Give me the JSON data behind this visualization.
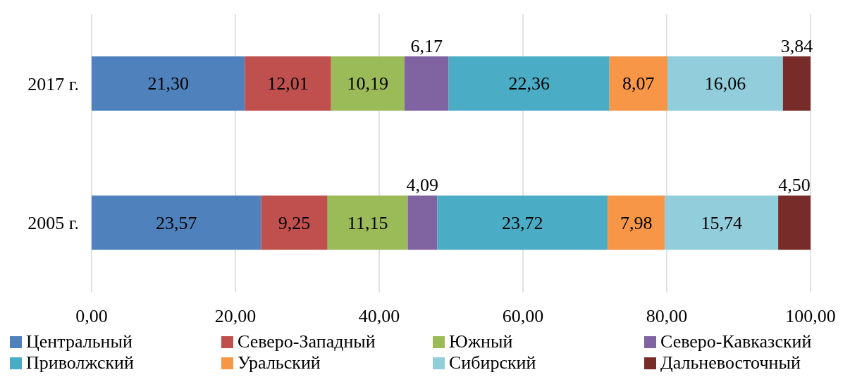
{
  "chart_data": {
    "type": "bar",
    "orientation": "horizontal",
    "stacked": true,
    "categories": [
      "2017 г.",
      "2005 г."
    ],
    "series": [
      {
        "name": "Центральный",
        "color": "#4f81bd",
        "values": [
          21.3,
          23.57
        ],
        "value_labels": [
          "21,30",
          "23,57"
        ]
      },
      {
        "name": "Северо-Западный",
        "color": "#c0504d",
        "values": [
          12.01,
          9.25
        ],
        "value_labels": [
          "12,01",
          "9,25"
        ]
      },
      {
        "name": "Южный",
        "color": "#9bbb59",
        "values": [
          10.19,
          11.15
        ],
        "value_labels": [
          "10,19",
          "11,15"
        ]
      },
      {
        "name": "Северо-Кавказский",
        "color": "#8064a2",
        "values": [
          6.17,
          4.09
        ],
        "value_labels": [
          "6,17",
          "4,09"
        ]
      },
      {
        "name": "Приволжский",
        "color": "#4bacc6",
        "values": [
          22.36,
          23.72
        ],
        "value_labels": [
          "22,36",
          "23,72"
        ]
      },
      {
        "name": "Уральский",
        "color": "#f79646",
        "values": [
          8.07,
          7.98
        ],
        "value_labels": [
          "8,07",
          "7,98"
        ]
      },
      {
        "name": "Сибирский",
        "color": "#92cddc",
        "values": [
          16.06,
          15.74
        ],
        "value_labels": [
          "16,06",
          "15,74"
        ]
      },
      {
        "name": "Дальневосточный",
        "color": "#772c2a",
        "values": [
          3.84,
          4.5
        ],
        "value_labels": [
          "3,84",
          "4,50"
        ]
      }
    ],
    "xlim": [
      0,
      100
    ],
    "xticks": [
      {
        "value": 0,
        "label": "0,00"
      },
      {
        "value": 20,
        "label": "20,00"
      },
      {
        "value": 40,
        "label": "40,00"
      },
      {
        "value": 60,
        "label": "60,00"
      },
      {
        "value": 80,
        "label": "80,00"
      },
      {
        "value": 100,
        "label": "100,00"
      }
    ],
    "grid": "x",
    "legend": "bottom"
  }
}
